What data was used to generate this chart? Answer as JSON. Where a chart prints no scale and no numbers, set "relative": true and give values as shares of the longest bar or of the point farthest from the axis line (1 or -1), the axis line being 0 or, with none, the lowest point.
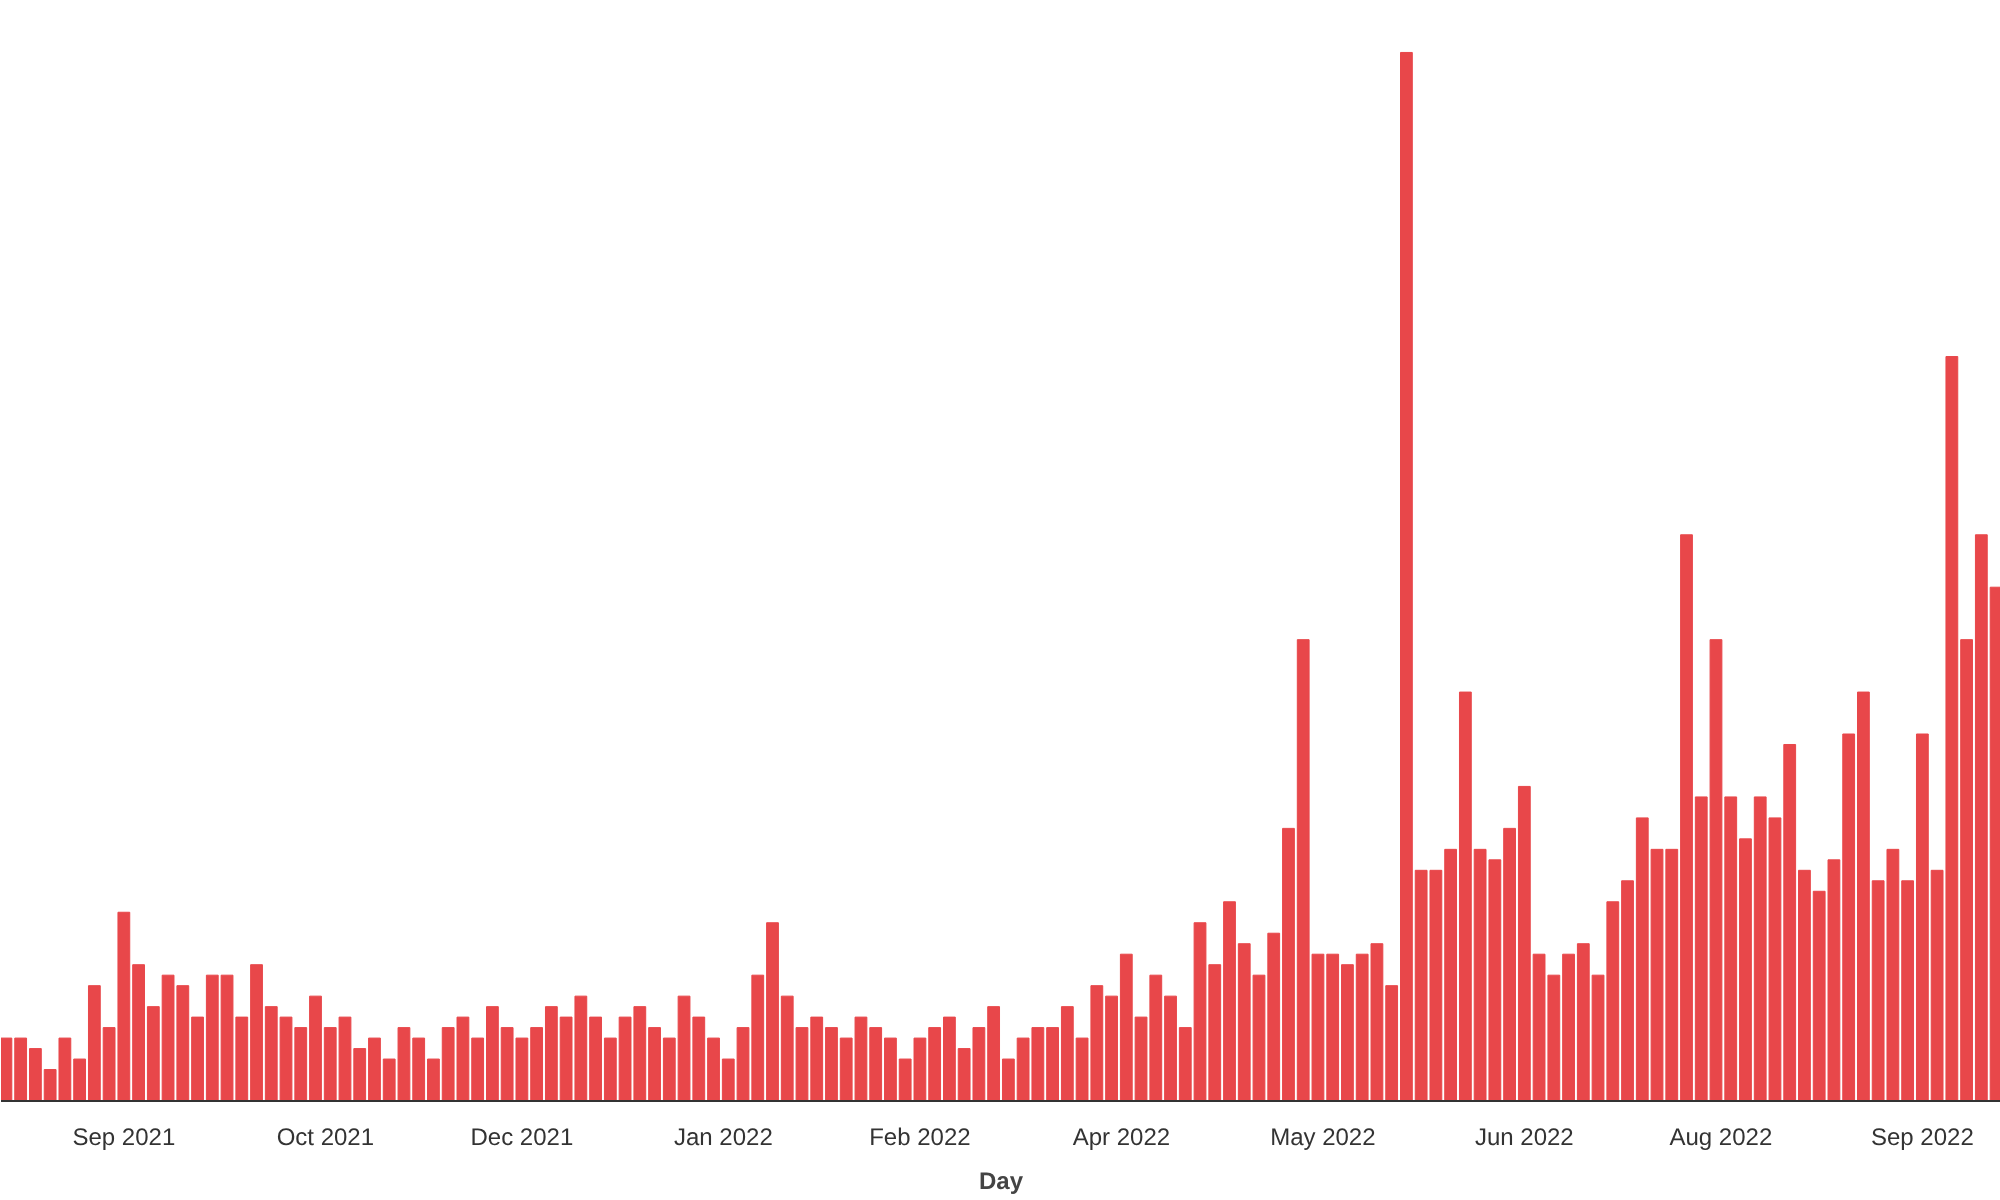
{
  "chart_data": {
    "type": "bar",
    "xlabel": "Day",
    "relative": true,
    "color": "#e8474a",
    "x": [
      "2021-08-22",
      "2021-08-25",
      "2021-08-28",
      "2021-08-31",
      "2021-09-03",
      "2021-09-06",
      "2021-09-09",
      "2021-09-12",
      "2021-09-15",
      "2021-09-18",
      "2021-09-21",
      "2021-09-24",
      "2021-09-27",
      "2021-09-30",
      "2021-10-03",
      "2021-10-06",
      "2021-10-09",
      "2021-10-12",
      "2021-10-15",
      "2021-10-18",
      "2021-10-21",
      "2021-10-24",
      "2021-10-27",
      "2021-10-30",
      "2021-11-02",
      "2021-11-05",
      "2021-11-08",
      "2021-11-11",
      "2021-11-14",
      "2021-11-17",
      "2021-11-20",
      "2021-11-23",
      "2021-11-26",
      "2021-11-29",
      "2021-12-02",
      "2021-12-05",
      "2021-12-08",
      "2021-12-11",
      "2021-12-14",
      "2021-12-17",
      "2021-12-20",
      "2021-12-23",
      "2021-12-26",
      "2021-12-29",
      "2022-01-01",
      "2022-01-04",
      "2022-01-07",
      "2022-01-10",
      "2022-01-13",
      "2022-01-16",
      "2022-01-19",
      "2022-01-22",
      "2022-01-25",
      "2022-01-28",
      "2022-01-31",
      "2022-02-03",
      "2022-02-06",
      "2022-02-09",
      "2022-02-12",
      "2022-02-15",
      "2022-02-18",
      "2022-02-21",
      "2022-02-24",
      "2022-02-27",
      "2022-03-02",
      "2022-03-05",
      "2022-03-08",
      "2022-03-11",
      "2022-03-14",
      "2022-03-17",
      "2022-03-20",
      "2022-03-23",
      "2022-03-26",
      "2022-03-29",
      "2022-04-01",
      "2022-04-04",
      "2022-04-07",
      "2022-04-10",
      "2022-04-13",
      "2022-04-16",
      "2022-04-19",
      "2022-04-22",
      "2022-04-25",
      "2022-04-28",
      "2022-05-01",
      "2022-05-04",
      "2022-05-07",
      "2022-05-10",
      "2022-05-13",
      "2022-05-16",
      "2022-05-19",
      "2022-05-22",
      "2022-05-25",
      "2022-05-28",
      "2022-05-31",
      "2022-06-03",
      "2022-06-06",
      "2022-06-09",
      "2022-06-12",
      "2022-06-15",
      "2022-06-18",
      "2022-06-21",
      "2022-06-24",
      "2022-06-27",
      "2022-06-30",
      "2022-07-03",
      "2022-07-06",
      "2022-07-09",
      "2022-07-12",
      "2022-07-15",
      "2022-07-18",
      "2022-07-21",
      "2022-07-24",
      "2022-07-27",
      "2022-07-30",
      "2022-08-02",
      "2022-08-05",
      "2022-08-08",
      "2022-08-11",
      "2022-08-14",
      "2022-08-17",
      "2022-08-20",
      "2022-08-23",
      "2022-08-26",
      "2022-08-29",
      "2022-09-01",
      "2022-09-04",
      "2022-09-07",
      "2022-09-10",
      "2022-09-13",
      "2022-09-16",
      "2022-09-19",
      "2022-09-22",
      "2022-09-25",
      "2022-09-28",
      "2022-10-01"
    ],
    "values": [
      0.06,
      0.06,
      0.05,
      0.03,
      0.06,
      0.04,
      0.11,
      0.07,
      0.18,
      0.13,
      0.09,
      0.12,
      0.11,
      0.08,
      0.12,
      0.12,
      0.08,
      0.13,
      0.09,
      0.08,
      0.07,
      0.1,
      0.07,
      0.08,
      0.05,
      0.06,
      0.04,
      0.07,
      0.06,
      0.04,
      0.07,
      0.08,
      0.06,
      0.09,
      0.07,
      0.06,
      0.07,
      0.09,
      0.08,
      0.1,
      0.08,
      0.06,
      0.08,
      0.09,
      0.07,
      0.06,
      0.1,
      0.08,
      0.06,
      0.04,
      0.07,
      0.12,
      0.17,
      0.1,
      0.07,
      0.08,
      0.07,
      0.06,
      0.08,
      0.07,
      0.06,
      0.04,
      0.06,
      0.07,
      0.08,
      0.05,
      0.07,
      0.09,
      0.04,
      0.06,
      0.07,
      0.07,
      0.09,
      0.06,
      0.11,
      0.1,
      0.14,
      0.08,
      0.12,
      0.1,
      0.07,
      0.17,
      0.13,
      0.19,
      0.15,
      0.12,
      0.16,
      0.26,
      0.44,
      0.14,
      0.14,
      0.13,
      0.14,
      0.15,
      0.11,
      1,
      0.22,
      0.22,
      0.24,
      0.39,
      0.24,
      0.23,
      0.26,
      0.3,
      0.14,
      0.12,
      0.14,
      0.15,
      0.12,
      0.19,
      0.21,
      0.27,
      0.24,
      0.24,
      0.54,
      0.29,
      0.44,
      0.29,
      0.25,
      0.29,
      0.27,
      0.34,
      0.22,
      0.2,
      0.23,
      0.35,
      0.39,
      0.21,
      0.24,
      0.21,
      0.35,
      0.22,
      0.71,
      0.44,
      0.54,
      0.49
    ],
    "xlim": [
      "2021-08-21",
      "2022-10-02"
    ],
    "xticks": [
      {
        "value": "2021-09-15",
        "label": "Sep 2021"
      },
      {
        "value": "2021-10-26",
        "label": "Oct 2021"
      },
      {
        "value": "2021-12-05",
        "label": "Dec 2021"
      },
      {
        "value": "2022-01-15",
        "label": "Jan 2022"
      },
      {
        "value": "2022-02-24",
        "label": "Feb 2022"
      },
      {
        "value": "2022-04-06",
        "label": "Apr 2022"
      },
      {
        "value": "2022-05-17",
        "label": "May 2022"
      },
      {
        "value": "2022-06-27",
        "label": "Jun 2022"
      },
      {
        "value": "2022-08-06",
        "label": "Aug 2022"
      },
      {
        "value": "2022-09-16",
        "label": "Sep 2022"
      }
    ]
  }
}
